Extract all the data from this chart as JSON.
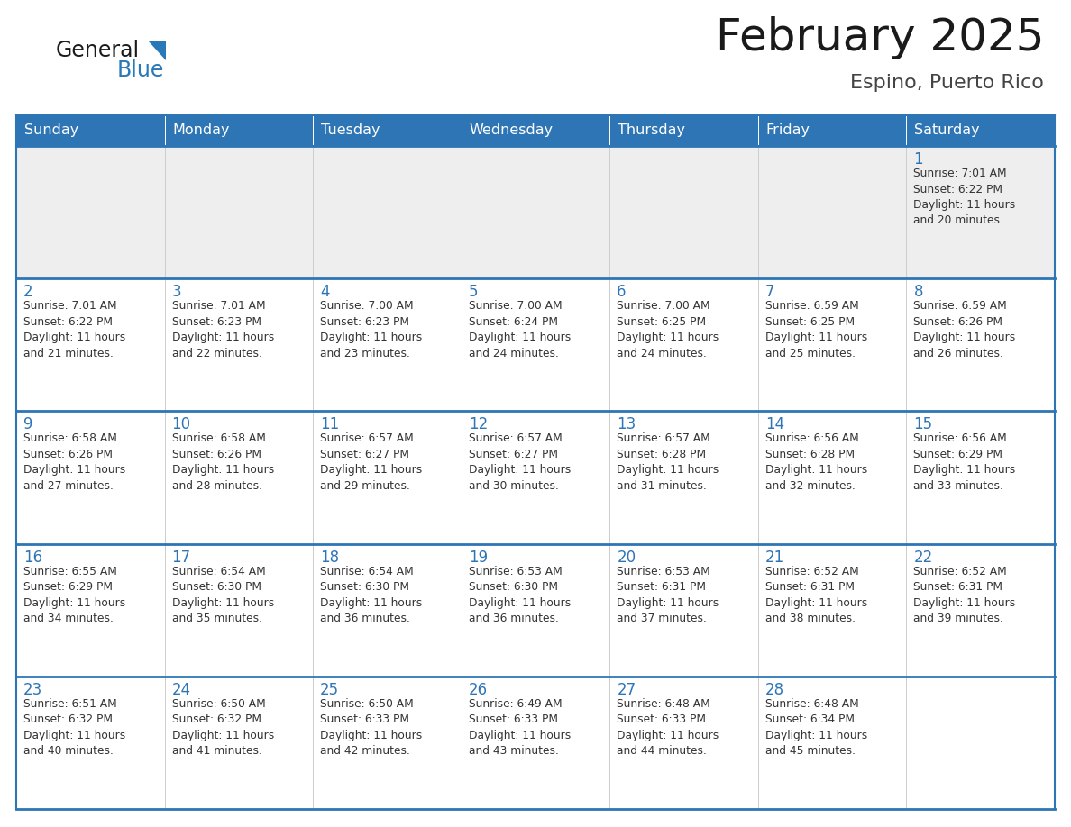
{
  "title": "February 2025",
  "subtitle": "Espino, Puerto Rico",
  "header_bg": "#2E75B6",
  "header_text_color": "#FFFFFF",
  "cell_border_color": "#CCCCCC",
  "row_separator_color": "#2E75B6",
  "day_headers": [
    "Sunday",
    "Monday",
    "Tuesday",
    "Wednesday",
    "Thursday",
    "Friday",
    "Saturday"
  ],
  "title_color": "#1a1a1a",
  "subtitle_color": "#444444",
  "day_number_color": "#2E75B6",
  "info_color": "#333333",
  "first_row_bg": "#EEEEEE",
  "cell_bg": "#FFFFFF",
  "logo_general_color": "#1a1a1a",
  "logo_blue_color": "#2979B8",
  "calendar_data": [
    [
      null,
      null,
      null,
      null,
      null,
      null,
      {
        "day": 1,
        "sunrise": "7:01 AM",
        "sunset": "6:22 PM",
        "daylight": "11 hours\nand 20 minutes."
      }
    ],
    [
      {
        "day": 2,
        "sunrise": "7:01 AM",
        "sunset": "6:22 PM",
        "daylight": "11 hours\nand 21 minutes."
      },
      {
        "day": 3,
        "sunrise": "7:01 AM",
        "sunset": "6:23 PM",
        "daylight": "11 hours\nand 22 minutes."
      },
      {
        "day": 4,
        "sunrise": "7:00 AM",
        "sunset": "6:23 PM",
        "daylight": "11 hours\nand 23 minutes."
      },
      {
        "day": 5,
        "sunrise": "7:00 AM",
        "sunset": "6:24 PM",
        "daylight": "11 hours\nand 24 minutes."
      },
      {
        "day": 6,
        "sunrise": "7:00 AM",
        "sunset": "6:25 PM",
        "daylight": "11 hours\nand 24 minutes."
      },
      {
        "day": 7,
        "sunrise": "6:59 AM",
        "sunset": "6:25 PM",
        "daylight": "11 hours\nand 25 minutes."
      },
      {
        "day": 8,
        "sunrise": "6:59 AM",
        "sunset": "6:26 PM",
        "daylight": "11 hours\nand 26 minutes."
      }
    ],
    [
      {
        "day": 9,
        "sunrise": "6:58 AM",
        "sunset": "6:26 PM",
        "daylight": "11 hours\nand 27 minutes."
      },
      {
        "day": 10,
        "sunrise": "6:58 AM",
        "sunset": "6:26 PM",
        "daylight": "11 hours\nand 28 minutes."
      },
      {
        "day": 11,
        "sunrise": "6:57 AM",
        "sunset": "6:27 PM",
        "daylight": "11 hours\nand 29 minutes."
      },
      {
        "day": 12,
        "sunrise": "6:57 AM",
        "sunset": "6:27 PM",
        "daylight": "11 hours\nand 30 minutes."
      },
      {
        "day": 13,
        "sunrise": "6:57 AM",
        "sunset": "6:28 PM",
        "daylight": "11 hours\nand 31 minutes."
      },
      {
        "day": 14,
        "sunrise": "6:56 AM",
        "sunset": "6:28 PM",
        "daylight": "11 hours\nand 32 minutes."
      },
      {
        "day": 15,
        "sunrise": "6:56 AM",
        "sunset": "6:29 PM",
        "daylight": "11 hours\nand 33 minutes."
      }
    ],
    [
      {
        "day": 16,
        "sunrise": "6:55 AM",
        "sunset": "6:29 PM",
        "daylight": "11 hours\nand 34 minutes."
      },
      {
        "day": 17,
        "sunrise": "6:54 AM",
        "sunset": "6:30 PM",
        "daylight": "11 hours\nand 35 minutes."
      },
      {
        "day": 18,
        "sunrise": "6:54 AM",
        "sunset": "6:30 PM",
        "daylight": "11 hours\nand 36 minutes."
      },
      {
        "day": 19,
        "sunrise": "6:53 AM",
        "sunset": "6:30 PM",
        "daylight": "11 hours\nand 36 minutes."
      },
      {
        "day": 20,
        "sunrise": "6:53 AM",
        "sunset": "6:31 PM",
        "daylight": "11 hours\nand 37 minutes."
      },
      {
        "day": 21,
        "sunrise": "6:52 AM",
        "sunset": "6:31 PM",
        "daylight": "11 hours\nand 38 minutes."
      },
      {
        "day": 22,
        "sunrise": "6:52 AM",
        "sunset": "6:31 PM",
        "daylight": "11 hours\nand 39 minutes."
      }
    ],
    [
      {
        "day": 23,
        "sunrise": "6:51 AM",
        "sunset": "6:32 PM",
        "daylight": "11 hours\nand 40 minutes."
      },
      {
        "day": 24,
        "sunrise": "6:50 AM",
        "sunset": "6:32 PM",
        "daylight": "11 hours\nand 41 minutes."
      },
      {
        "day": 25,
        "sunrise": "6:50 AM",
        "sunset": "6:33 PM",
        "daylight": "11 hours\nand 42 minutes."
      },
      {
        "day": 26,
        "sunrise": "6:49 AM",
        "sunset": "6:33 PM",
        "daylight": "11 hours\nand 43 minutes."
      },
      {
        "day": 27,
        "sunrise": "6:48 AM",
        "sunset": "6:33 PM",
        "daylight": "11 hours\nand 44 minutes."
      },
      {
        "day": 28,
        "sunrise": "6:48 AM",
        "sunset": "6:34 PM",
        "daylight": "11 hours\nand 45 minutes."
      },
      null
    ]
  ]
}
